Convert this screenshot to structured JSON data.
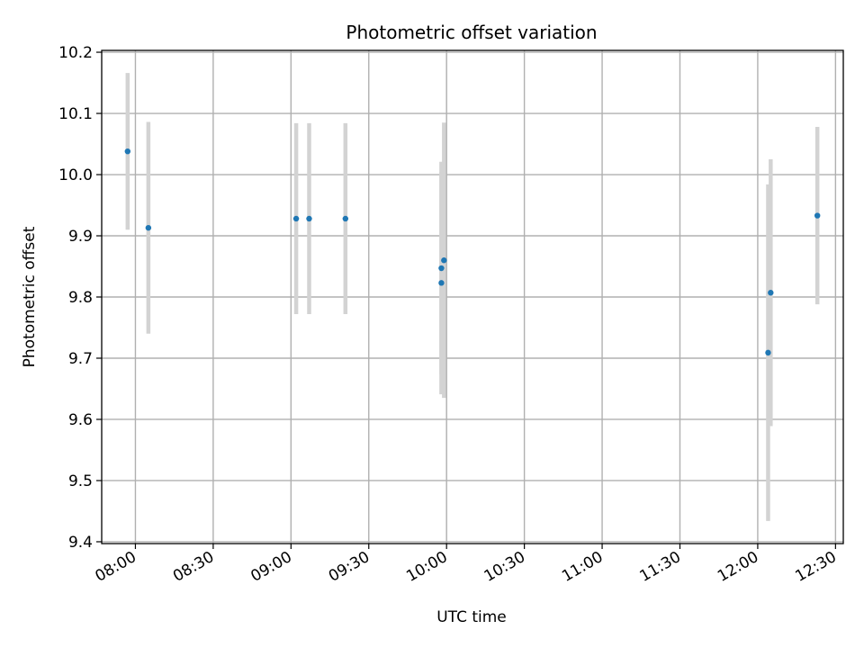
{
  "chart_data": {
    "type": "scatter",
    "title": "Photometric offset variation",
    "xlabel": "UTC time",
    "ylabel": "Photometric offset",
    "x_ticks": [
      "08:00",
      "08:30",
      "09:00",
      "09:30",
      "10:00",
      "10:30",
      "11:00",
      "11:30",
      "12:00",
      "12:30"
    ],
    "xlim": [
      "07:47",
      "12:33"
    ],
    "y_ticks": [
      "9.4",
      "9.5",
      "9.6",
      "9.7",
      "9.8",
      "9.9",
      "10.0",
      "10.1",
      "10.2"
    ],
    "ylim": [
      9.397,
      10.203
    ],
    "grid": true,
    "point_color": "#1f77b4",
    "errorbar_color": "#d3d3d3",
    "points": [
      {
        "x": "07:57",
        "y": 10.038,
        "err": 0.128
      },
      {
        "x": "08:05",
        "y": 9.913,
        "err": 0.173
      },
      {
        "x": "09:02",
        "y": 9.928,
        "err": 0.156
      },
      {
        "x": "09:07",
        "y": 9.928,
        "err": 0.156
      },
      {
        "x": "09:21",
        "y": 9.928,
        "err": 0.156
      },
      {
        "x": "09:58",
        "y": 9.847,
        "err": 0.174
      },
      {
        "x": "09:58",
        "y": 9.823,
        "err": 0.182
      },
      {
        "x": "09:59",
        "y": 9.86,
        "err": 0.225
      },
      {
        "x": "12:04",
        "y": 9.709,
        "err": 0.275
      },
      {
        "x": "12:05",
        "y": 9.807,
        "err": 0.218
      },
      {
        "x": "12:23",
        "y": 9.933,
        "err": 0.145
      }
    ]
  }
}
